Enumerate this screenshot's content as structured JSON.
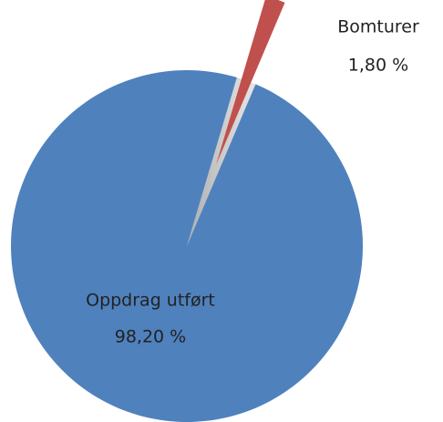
{
  "chart_data": {
    "type": "pie",
    "categories": [
      "Oppdrag utført",
      "Bomturer"
    ],
    "values": [
      98.2,
      1.8
    ],
    "value_labels": [
      "98,20 %",
      "1,80 %"
    ],
    "colors": [
      "#4f81bd",
      "#c0504d"
    ]
  }
}
